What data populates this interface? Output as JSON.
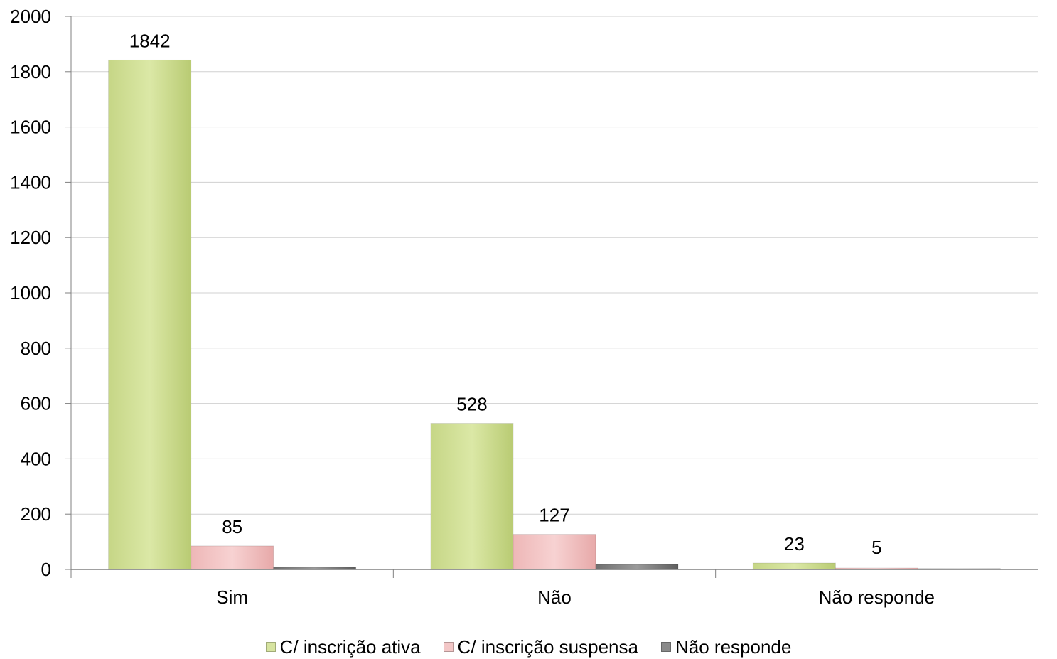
{
  "chart_data": {
    "type": "bar",
    "categories": [
      "Sim",
      "Não",
      "Não responde"
    ],
    "series": [
      {
        "name": "C/ inscrição ativa",
        "values": [
          1842,
          528,
          23
        ],
        "color": "#d7e4a0",
        "labels": [
          "1842",
          "528",
          "23"
        ]
      },
      {
        "name": "C/ inscrição suspensa",
        "values": [
          85,
          127,
          5
        ],
        "color": "#f3c7c7",
        "labels": [
          "85",
          "127",
          "5"
        ]
      },
      {
        "name": "Não responde",
        "values": [
          8,
          18,
          3
        ],
        "color": "#8a8a8a",
        "labels": [
          "",
          "",
          ""
        ]
      }
    ],
    "ylim": [
      0,
      2000
    ],
    "yticks": [
      "0",
      "200",
      "400",
      "600",
      "800",
      "1000",
      "1200",
      "1400",
      "1600",
      "1800",
      "2000"
    ],
    "grid": true,
    "legend": "bottom"
  }
}
